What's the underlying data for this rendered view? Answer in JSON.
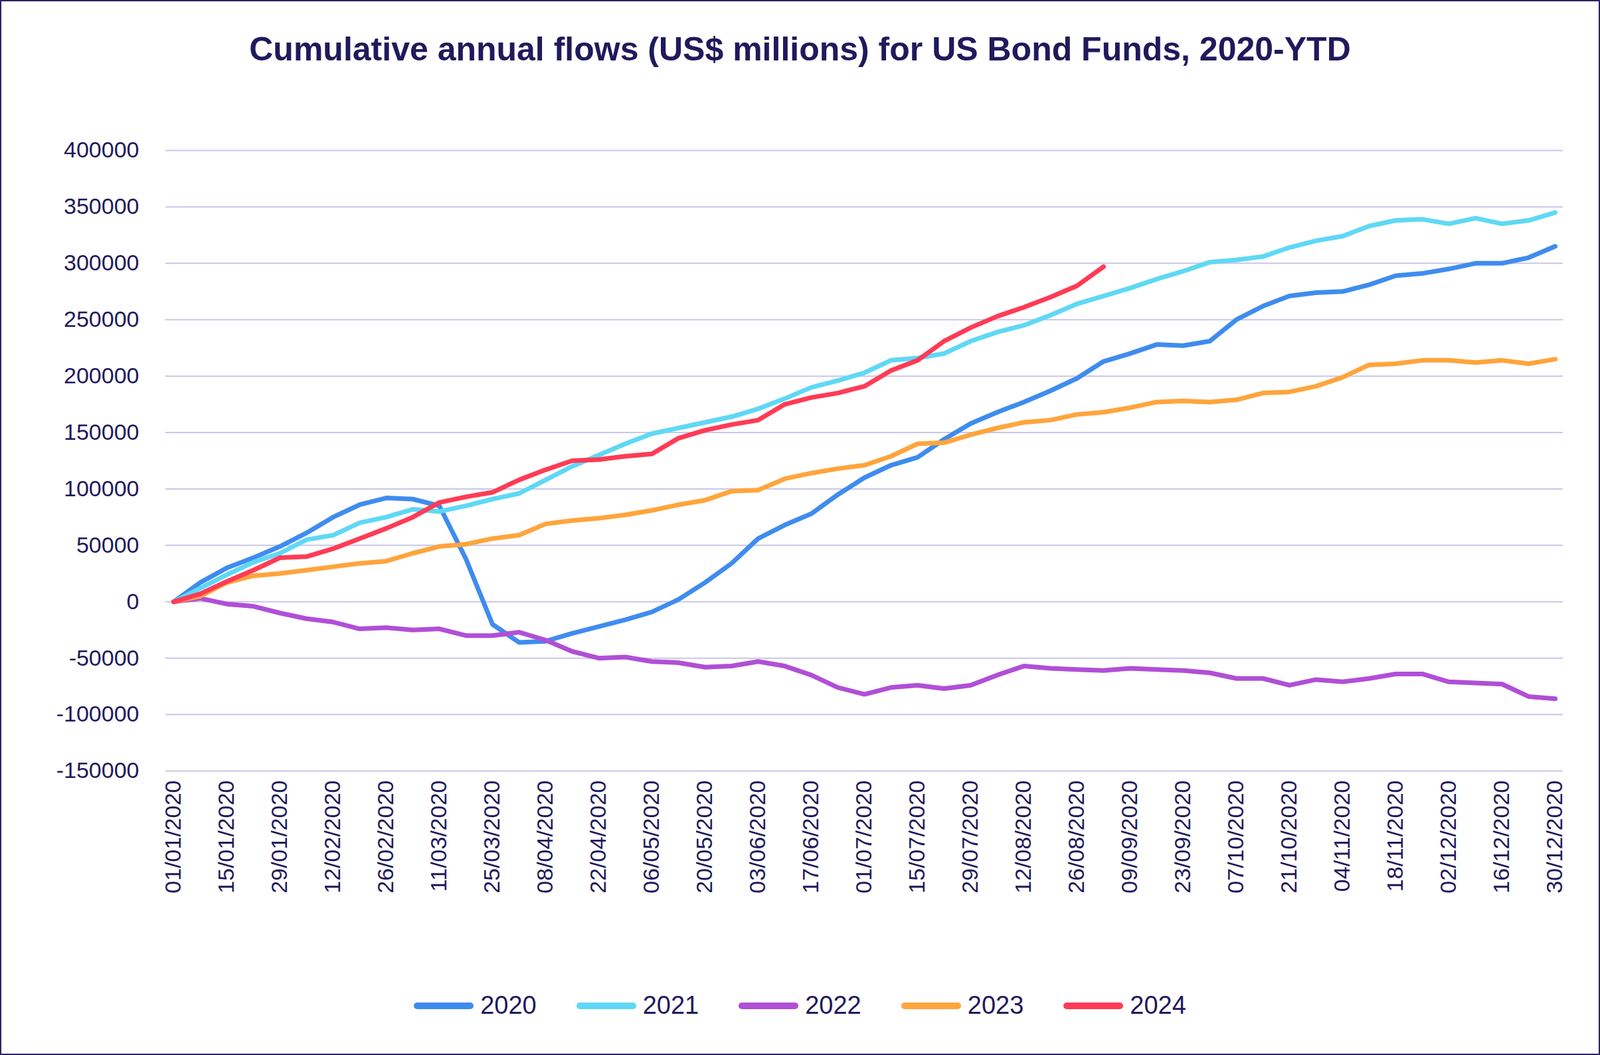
{
  "chart_data": {
    "type": "line",
    "title": "Cumulative annual flows (US$ millions) for US Bond Funds, 2020-YTD",
    "x": [
      "01/01/2020",
      null,
      "15/01/2020",
      null,
      "29/01/2020",
      null,
      "12/02/2020",
      null,
      "26/02/2020",
      null,
      "11/03/2020",
      null,
      "25/03/2020",
      null,
      "08/04/2020",
      null,
      "22/04/2020",
      null,
      "06/05/2020",
      null,
      "20/05/2020",
      null,
      "03/06/2020",
      null,
      "17/06/2020",
      null,
      "01/07/2020",
      null,
      "15/07/2020",
      null,
      "29/07/2020",
      null,
      "12/08/2020",
      null,
      "26/08/2020",
      null,
      "09/09/2020",
      null,
      "23/09/2020",
      null,
      "07/10/2020",
      null,
      "21/10/2020",
      null,
      "04/11/2020",
      null,
      "18/11/2020",
      null,
      "02/12/2020",
      null,
      "16/12/2020",
      null,
      "30/12/2020"
    ],
    "series": [
      {
        "name": "2020",
        "color": "#3f8cef",
        "values": [
          0,
          17000,
          30000,
          39000,
          49000,
          61000,
          75000,
          86000,
          92000,
          91000,
          85000,
          38000,
          -20000,
          -36000,
          -35000,
          -28000,
          -22000,
          -16000,
          -9000,
          2000,
          17000,
          34000,
          56000,
          68000,
          78000,
          95000,
          110000,
          121000,
          128000,
          144000,
          158000,
          168000,
          177000,
          187000,
          198000,
          213000,
          220000,
          228000,
          227000,
          231000,
          250000,
          262000,
          271000,
          274000,
          275000,
          281000,
          289000,
          291000,
          295000,
          300000,
          300000,
          305000,
          315000
        ]
      },
      {
        "name": "2021",
        "color": "#5fd8f5",
        "values": [
          0,
          12000,
          24000,
          35000,
          43000,
          55000,
          59000,
          70000,
          75000,
          82000,
          80000,
          85000,
          91000,
          96000,
          108000,
          120000,
          130000,
          140000,
          149000,
          154000,
          159000,
          164000,
          171000,
          180000,
          190000,
          196000,
          203000,
          214000,
          216000,
          220000,
          231000,
          239000,
          245000,
          254000,
          264000,
          271000,
          278000,
          286000,
          293000,
          301000,
          303000,
          306000,
          314000,
          320000,
          324000,
          333000,
          338000,
          339000,
          335000,
          340000,
          335000,
          338000,
          345000
        ]
      },
      {
        "name": "2022",
        "color": "#b04fd6",
        "values": [
          0,
          3000,
          -2000,
          -4000,
          -10000,
          -15000,
          -18000,
          -24000,
          -23000,
          -25000,
          -24000,
          -30000,
          -30000,
          -27000,
          -34000,
          -44000,
          -50000,
          -49000,
          -53000,
          -54000,
          -58000,
          -57000,
          -53000,
          -57000,
          -65000,
          -76000,
          -82000,
          -76000,
          -74000,
          -77000,
          -74000,
          -65000,
          -57000,
          -59000,
          -60000,
          -61000,
          -59000,
          -60000,
          -61000,
          -63000,
          -68000,
          -68000,
          -74000,
          -69000,
          -71000,
          -68000,
          -64000,
          -64000,
          -71000,
          -72000,
          -73000,
          -84000,
          -86000
        ]
      },
      {
        "name": "2023",
        "color": "#ffa53c",
        "values": [
          0,
          5000,
          17000,
          23000,
          25000,
          28000,
          31000,
          34000,
          36000,
          43000,
          49000,
          51000,
          56000,
          59000,
          69000,
          72000,
          74000,
          77000,
          81000,
          86000,
          90000,
          98000,
          99000,
          109000,
          114000,
          118000,
          121000,
          129000,
          140000,
          141000,
          148000,
          154000,
          159000,
          161000,
          166000,
          168000,
          172000,
          177000,
          178000,
          177000,
          179000,
          185000,
          186000,
          191000,
          199000,
          210000,
          211000,
          214000,
          214000,
          212000,
          214000,
          211000,
          215000
        ]
      },
      {
        "name": "2024",
        "color": "#ff3b55",
        "values": [
          0,
          7000,
          18000,
          28000,
          39000,
          40000,
          47000,
          56000,
          65000,
          75000,
          88000,
          93000,
          97000,
          108000,
          117000,
          125000,
          126000,
          129000,
          131000,
          145000,
          152000,
          157000,
          161000,
          175000,
          181000,
          185000,
          191000,
          205000,
          214000,
          231000,
          243000,
          253000,
          261000,
          270000,
          280000,
          297000,
          null,
          null,
          null,
          null,
          null,
          null,
          null,
          null,
          null,
          null,
          null,
          null,
          null,
          null,
          null,
          null,
          null
        ]
      }
    ],
    "ylim": [
      -150000,
      400000
    ],
    "yticks": [
      -150000,
      -100000,
      -50000,
      0,
      50000,
      100000,
      150000,
      200000,
      250000,
      300000,
      350000,
      400000
    ],
    "grid": true,
    "legend": "bottom"
  }
}
